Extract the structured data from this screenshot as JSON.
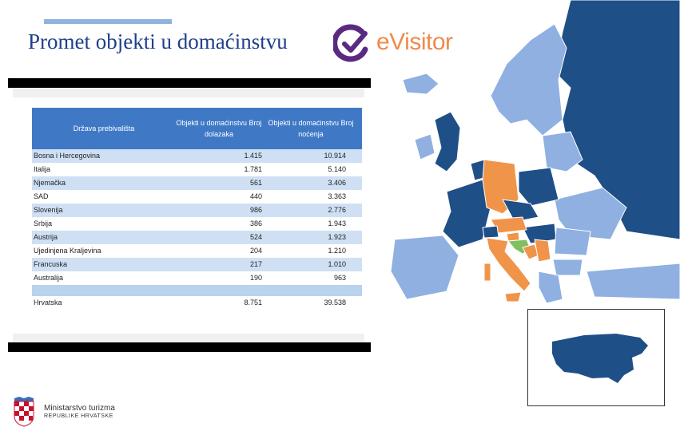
{
  "title": "Promet objekti u domaćinstvu",
  "logo": {
    "text": "eVisitor",
    "icon": "evisitor-check-icon"
  },
  "colors": {
    "title": "#1f3f8a",
    "header_bg": "#3f79c6",
    "row_alt": "#cfe0f4",
    "map_dark": "#1f4f87",
    "map_light": "#8fb0e0",
    "map_orange": "#f0944a",
    "map_green": "#7fc060",
    "logo_orange": "#f08a4b",
    "logo_purple": "#5a2a80"
  },
  "table": {
    "headers": {
      "country": "Država prebivališta",
      "arrivals": "Objekti u domaćinstvu Broj dolazaka",
      "nights": "Objekti u domaćinstvu Broj noćenja"
    },
    "rows": [
      {
        "country": "Bosna i Hercegovina",
        "arrivals": "1.415",
        "nights": "10.914"
      },
      {
        "country": "Italija",
        "arrivals": "1.781",
        "nights": "5.140"
      },
      {
        "country": "Njemačka",
        "arrivals": "561",
        "nights": "3.406"
      },
      {
        "country": "SAD",
        "arrivals": "440",
        "nights": "3.363"
      },
      {
        "country": "Slovenija",
        "arrivals": "986",
        "nights": "2.776"
      },
      {
        "country": "Srbija",
        "arrivals": "386",
        "nights": "1.943"
      },
      {
        "country": "Austrija",
        "arrivals": "524",
        "nights": "1.923"
      },
      {
        "country": "Ujedinjena Kraljevina",
        "arrivals": "204",
        "nights": "1.210"
      },
      {
        "country": "Francuska",
        "arrivals": "217",
        "nights": "1.010"
      },
      {
        "country": "Australija",
        "arrivals": "190",
        "nights": "963"
      }
    ],
    "total": {
      "country": "Hrvatska",
      "arrivals": "8.751",
      "nights": "39.538"
    }
  },
  "map": {
    "europe_icon": "europe-map",
    "usa_icon": "usa-map"
  },
  "footer": {
    "ministry_line1": "Ministarstvo turizma",
    "ministry_line2": "REPUBLIKE HRVATSKE",
    "crest_icon": "croatian-coat-of-arms-icon"
  }
}
